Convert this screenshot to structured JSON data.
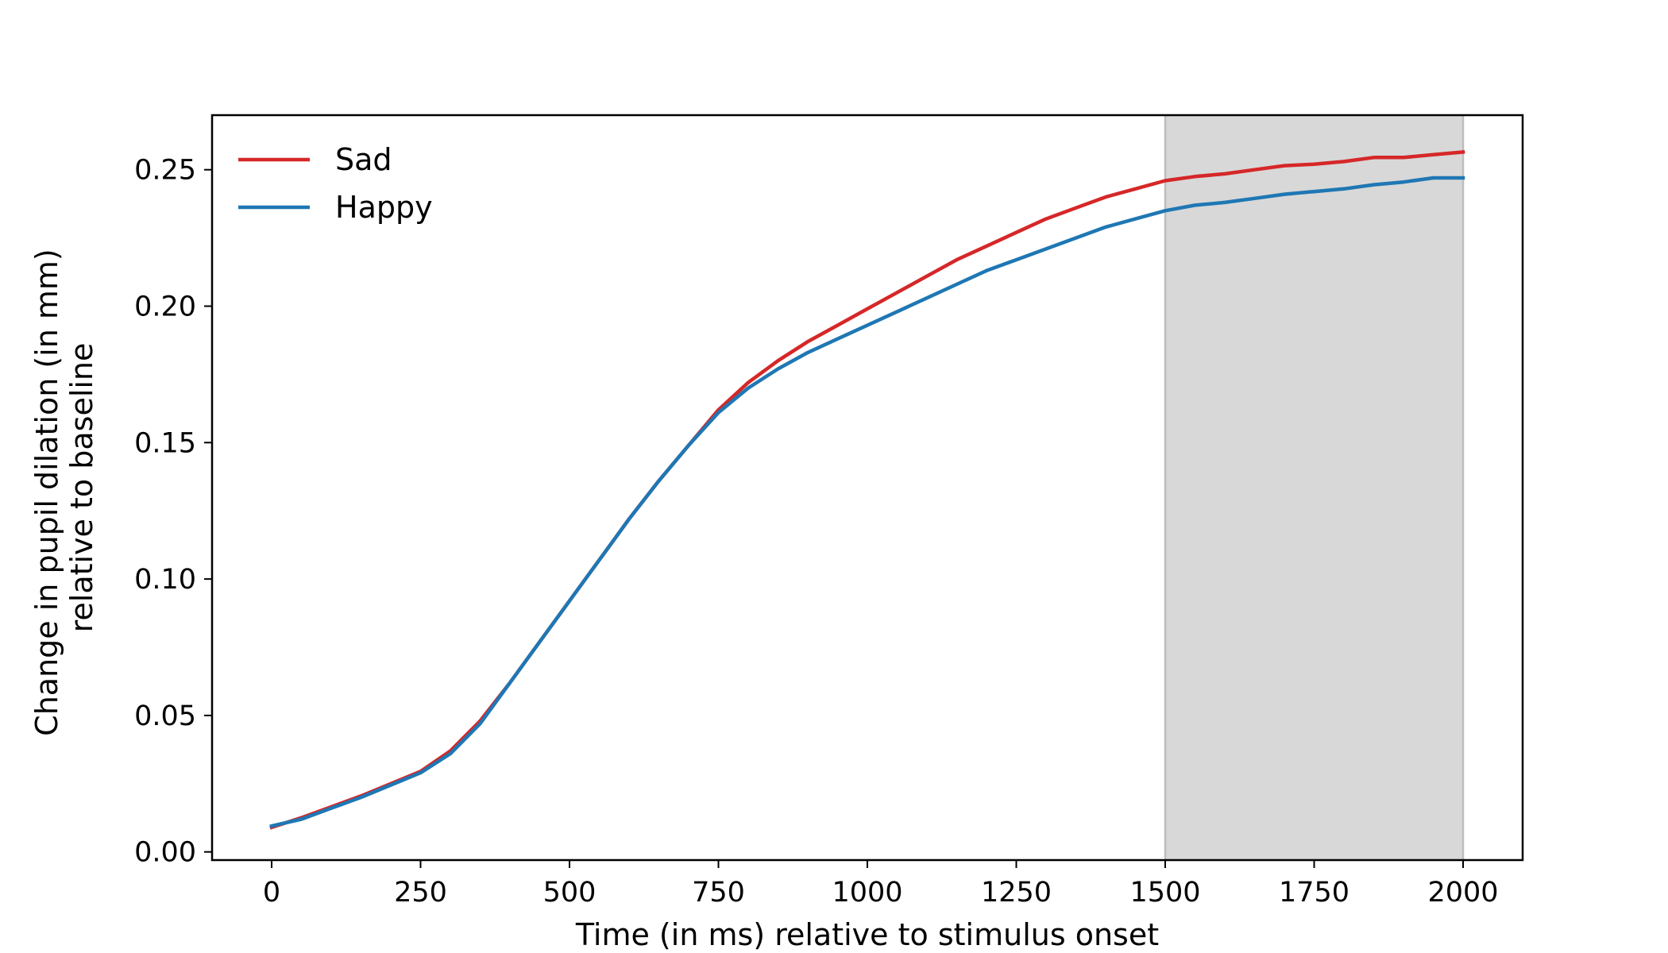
{
  "chart_data": {
    "type": "line",
    "title": "",
    "xlabel": "Time (in ms) relative to stimulus onset",
    "ylabel": [
      "Change in pupil dilation (in mm)",
      "relative to baseline"
    ],
    "xlim": [
      -100,
      2100
    ],
    "ylim": [
      -0.003,
      0.27
    ],
    "xticks": [
      0,
      250,
      500,
      750,
      1000,
      1250,
      1500,
      1750,
      2000
    ],
    "yticks": [
      0.0,
      0.05,
      0.1,
      0.15,
      0.2,
      0.25
    ],
    "xtick_labels": [
      "0",
      "250",
      "500",
      "750",
      "1000",
      "1250",
      "1500",
      "1750",
      "2000"
    ],
    "ytick_labels": [
      "0.00",
      "0.05",
      "0.10",
      "0.15",
      "0.20",
      "0.25"
    ],
    "grid": false,
    "legend_position": "upper-left",
    "shaded_region": {
      "x0": 1500,
      "x1": 2000,
      "color": "#d8d8d8",
      "edge_color": "#bdbdbd"
    },
    "x": [
      0,
      50,
      100,
      150,
      200,
      250,
      300,
      350,
      400,
      450,
      500,
      550,
      600,
      650,
      700,
      750,
      800,
      850,
      900,
      950,
      1000,
      1050,
      1100,
      1150,
      1200,
      1250,
      1300,
      1350,
      1400,
      1450,
      1500,
      1550,
      1600,
      1650,
      1700,
      1750,
      1800,
      1850,
      1900,
      1950,
      2000
    ],
    "series": [
      {
        "name": "Sad",
        "color": "#d62728",
        "values": [
          0.009,
          0.0125,
          0.0165,
          0.0205,
          0.025,
          0.0295,
          0.037,
          0.048,
          0.062,
          0.077,
          0.092,
          0.107,
          0.122,
          0.136,
          0.149,
          0.162,
          0.172,
          0.18,
          0.187,
          0.193,
          0.199,
          0.205,
          0.211,
          0.217,
          0.222,
          0.227,
          0.232,
          0.236,
          0.24,
          0.243,
          0.246,
          0.2475,
          0.2485,
          0.25,
          0.2515,
          0.252,
          0.253,
          0.2545,
          0.2545,
          0.2555,
          0.2565
        ]
      },
      {
        "name": "Happy",
        "color": "#1f77b4",
        "values": [
          0.0095,
          0.012,
          0.016,
          0.02,
          0.0245,
          0.029,
          0.036,
          0.047,
          0.062,
          0.077,
          0.092,
          0.107,
          0.122,
          0.136,
          0.149,
          0.161,
          0.17,
          0.177,
          0.183,
          0.188,
          0.193,
          0.198,
          0.203,
          0.208,
          0.213,
          0.217,
          0.221,
          0.225,
          0.229,
          0.232,
          0.235,
          0.237,
          0.238,
          0.2395,
          0.241,
          0.242,
          0.243,
          0.2445,
          0.2455,
          0.247,
          0.247
        ]
      }
    ]
  }
}
